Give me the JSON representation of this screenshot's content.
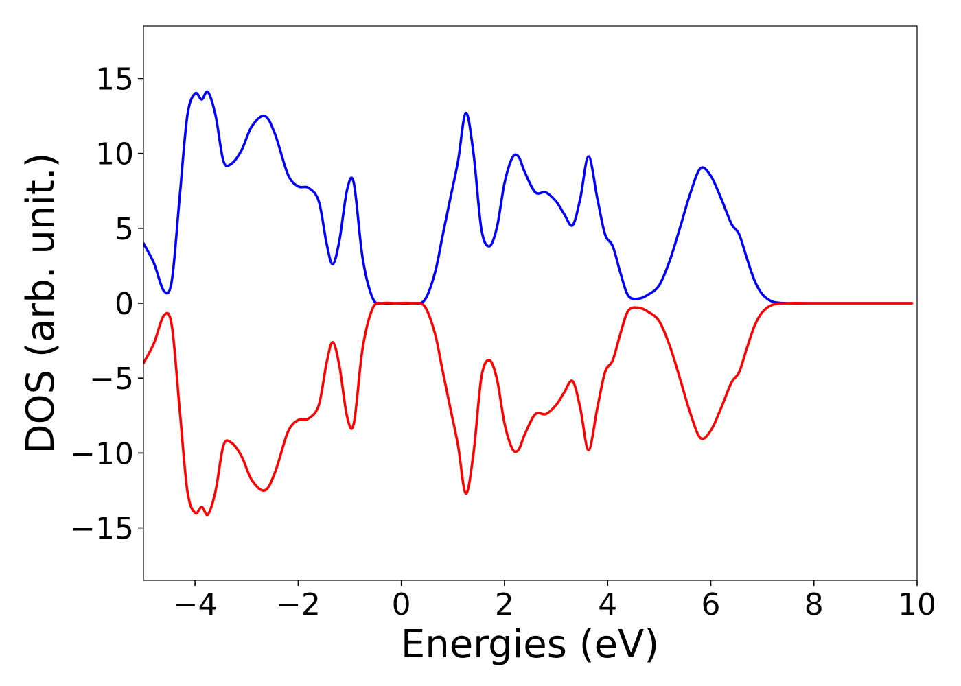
{
  "chart_data": {
    "type": "line",
    "title": "",
    "xlabel": "Energies (eV)",
    "ylabel": "DOS (arb. unit.)",
    "xlim": [
      -5,
      10
    ],
    "ylim": [
      -18.5,
      18.5
    ],
    "xticks": [
      -4,
      -2,
      0,
      2,
      4,
      6,
      8,
      10
    ],
    "xtick_labels": [
      "−4",
      "−2",
      "0",
      "2",
      "4",
      "6",
      "8",
      "10"
    ],
    "yticks": [
      15,
      10,
      5,
      0,
      -5,
      -10,
      -15
    ],
    "ytick_labels": [
      "15",
      "10",
      "5",
      "0",
      "−5",
      "−10",
      "−15"
    ],
    "grid": false,
    "series": [
      {
        "color": "#0000ff",
        "x": [
          -5.0,
          -4.8,
          -4.6,
          -4.45,
          -4.3,
          -4.15,
          -4.0,
          -3.87,
          -3.75,
          -3.6,
          -3.45,
          -3.3,
          -3.1,
          -2.9,
          -2.65,
          -2.45,
          -2.2,
          -2.0,
          -1.8,
          -1.6,
          -1.45,
          -1.33,
          -1.2,
          -1.05,
          -0.92,
          -0.75,
          -0.55,
          -0.35,
          -0.1,
          0.2,
          0.45,
          0.65,
          0.8,
          0.95,
          1.1,
          1.25,
          1.4,
          1.55,
          1.7,
          1.85,
          2.0,
          2.15,
          2.27,
          2.4,
          2.6,
          2.8,
          3.0,
          3.15,
          3.32,
          3.47,
          3.63,
          3.8,
          3.95,
          4.1,
          4.25,
          4.4,
          4.6,
          4.8,
          5.0,
          5.2,
          5.4,
          5.6,
          5.8,
          6.0,
          6.2,
          6.4,
          6.55,
          6.7,
          6.85,
          7.0,
          7.2,
          7.5,
          8.0,
          9.0,
          9.9
        ],
        "y": [
          4.0,
          2.7,
          0.8,
          1.5,
          7.0,
          12.5,
          14.0,
          13.6,
          14.1,
          12.5,
          9.5,
          9.3,
          10.2,
          11.8,
          12.5,
          11.3,
          8.6,
          7.8,
          7.7,
          6.8,
          4.0,
          2.6,
          4.2,
          7.6,
          8.0,
          3.0,
          0.3,
          0.0,
          0.0,
          0.0,
          0.2,
          2.0,
          4.5,
          7.0,
          9.5,
          12.7,
          10.0,
          5.0,
          3.8,
          5.0,
          8.0,
          9.7,
          9.8,
          8.7,
          7.4,
          7.4,
          6.8,
          6.0,
          5.2,
          7.0,
          9.8,
          7.0,
          4.6,
          3.8,
          2.0,
          0.5,
          0.3,
          0.6,
          1.2,
          2.8,
          5.0,
          7.3,
          9.0,
          8.5,
          7.0,
          5.3,
          4.6,
          3.0,
          1.5,
          0.6,
          0.1,
          0.0,
          0.0,
          0.0,
          0.0
        ]
      },
      {
        "color": "#ff0000",
        "x": [
          -5.0,
          -4.8,
          -4.6,
          -4.45,
          -4.3,
          -4.15,
          -4.0,
          -3.87,
          -3.75,
          -3.6,
          -3.45,
          -3.3,
          -3.1,
          -2.9,
          -2.65,
          -2.45,
          -2.2,
          -2.0,
          -1.8,
          -1.6,
          -1.45,
          -1.33,
          -1.2,
          -1.05,
          -0.92,
          -0.75,
          -0.55,
          -0.35,
          -0.1,
          0.2,
          0.45,
          0.65,
          0.8,
          0.95,
          1.1,
          1.25,
          1.4,
          1.55,
          1.7,
          1.85,
          2.0,
          2.15,
          2.27,
          2.4,
          2.6,
          2.8,
          3.0,
          3.15,
          3.32,
          3.47,
          3.63,
          3.8,
          3.95,
          4.1,
          4.25,
          4.4,
          4.6,
          4.8,
          5.0,
          5.2,
          5.4,
          5.6,
          5.8,
          6.0,
          6.2,
          6.4,
          6.55,
          6.7,
          6.85,
          7.0,
          7.2,
          7.5,
          8.0,
          9.0,
          9.9
        ],
        "y": [
          -4.0,
          -2.7,
          -0.8,
          -1.5,
          -7.0,
          -12.5,
          -14.0,
          -13.6,
          -14.1,
          -12.5,
          -9.5,
          -9.3,
          -10.2,
          -11.8,
          -12.5,
          -11.3,
          -8.6,
          -7.8,
          -7.7,
          -6.8,
          -4.0,
          -2.6,
          -4.2,
          -7.6,
          -8.0,
          -3.0,
          -0.3,
          -0.0,
          -0.0,
          -0.0,
          -0.2,
          -2.0,
          -4.5,
          -7.0,
          -9.5,
          -12.7,
          -10.0,
          -5.0,
          -3.8,
          -5.0,
          -8.0,
          -9.7,
          -9.8,
          -8.7,
          -7.4,
          -7.4,
          -6.8,
          -6.0,
          -5.2,
          -7.0,
          -9.8,
          -7.0,
          -4.6,
          -3.8,
          -2.0,
          -0.5,
          -0.3,
          -0.6,
          -1.2,
          -2.8,
          -5.0,
          -7.3,
          -9.0,
          -8.5,
          -7.0,
          -5.3,
          -4.6,
          -3.0,
          -1.5,
          -0.6,
          -0.1,
          -0.0,
          -0.0,
          -0.0,
          -0.0
        ]
      }
    ]
  }
}
